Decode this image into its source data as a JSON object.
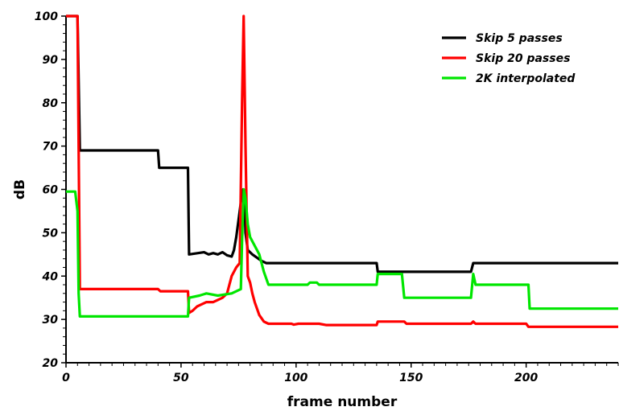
{
  "chart_data": {
    "type": "line",
    "xlabel": "frame number",
    "ylabel": "dB",
    "xlim": [
      0,
      240
    ],
    "ylim": [
      20,
      100
    ],
    "x_ticks": [
      0,
      50,
      100,
      150,
      200
    ],
    "y_ticks": [
      20,
      30,
      40,
      50,
      60,
      70,
      80,
      90,
      100
    ],
    "grid": false,
    "legend_position": "top-right",
    "series": [
      {
        "name": "Skip 5 passes",
        "color": "#000000",
        "points": [
          [
            0,
            100
          ],
          [
            5,
            100
          ],
          [
            6,
            69
          ],
          [
            40,
            69
          ],
          [
            40.5,
            65
          ],
          [
            53,
            65
          ],
          [
            53.5,
            45
          ],
          [
            60,
            45.5
          ],
          [
            62,
            45
          ],
          [
            64,
            45.3
          ],
          [
            66,
            45
          ],
          [
            68,
            45.5
          ],
          [
            70,
            44.8
          ],
          [
            72,
            44.5
          ],
          [
            73,
            46
          ],
          [
            74,
            49
          ],
          [
            75,
            53
          ],
          [
            76,
            57
          ],
          [
            77,
            60
          ],
          [
            77.6,
            58
          ],
          [
            78,
            50
          ],
          [
            79,
            46
          ],
          [
            81,
            45
          ],
          [
            85,
            43.5
          ],
          [
            87,
            43
          ],
          [
            135,
            43
          ],
          [
            135.5,
            41
          ],
          [
            176,
            41
          ],
          [
            177,
            43
          ],
          [
            240,
            43
          ]
        ]
      },
      {
        "name": "Skip 20 passes",
        "color": "#ff0000",
        "points": [
          [
            0,
            100
          ],
          [
            5,
            100
          ],
          [
            6,
            37
          ],
          [
            40,
            37
          ],
          [
            41,
            36.5
          ],
          [
            53,
            36.5
          ],
          [
            53.5,
            31.5
          ],
          [
            55,
            32
          ],
          [
            57,
            33
          ],
          [
            59,
            33.5
          ],
          [
            61,
            34
          ],
          [
            64,
            34
          ],
          [
            66,
            34.5
          ],
          [
            68,
            35
          ],
          [
            70,
            36
          ],
          [
            72,
            40
          ],
          [
            74,
            42
          ],
          [
            75.5,
            43
          ],
          [
            76.5,
            80
          ],
          [
            77.2,
            100
          ],
          [
            78,
            70
          ],
          [
            79,
            40
          ],
          [
            80,
            38.5
          ],
          [
            81,
            36
          ],
          [
            82,
            34
          ],
          [
            84,
            31
          ],
          [
            86,
            29.5
          ],
          [
            88,
            29
          ],
          [
            98,
            29
          ],
          [
            99,
            28.8
          ],
          [
            101,
            29
          ],
          [
            110,
            29
          ],
          [
            113,
            28.7
          ],
          [
            135,
            28.7
          ],
          [
            135.5,
            29.5
          ],
          [
            147,
            29.5
          ],
          [
            148,
            29
          ],
          [
            176,
            29
          ],
          [
            177,
            29.5
          ],
          [
            178,
            29
          ],
          [
            200,
            29
          ],
          [
            201,
            28.3
          ],
          [
            240,
            28.3
          ]
        ]
      },
      {
        "name": "2K interpolated",
        "color": "#00e600",
        "points": [
          [
            0,
            59.5
          ],
          [
            4,
            59.5
          ],
          [
            5,
            55
          ],
          [
            5.5,
            36
          ],
          [
            6,
            30.7
          ],
          [
            53,
            30.7
          ],
          [
            53.5,
            35
          ],
          [
            58,
            35.5
          ],
          [
            61,
            36
          ],
          [
            66,
            35.5
          ],
          [
            72,
            36
          ],
          [
            76,
            37
          ],
          [
            76.5,
            48
          ],
          [
            77.3,
            60
          ],
          [
            78,
            58
          ],
          [
            79,
            52
          ],
          [
            80,
            49
          ],
          [
            82,
            47
          ],
          [
            84,
            45
          ],
          [
            86,
            41
          ],
          [
            88,
            38
          ],
          [
            105,
            38
          ],
          [
            106,
            38.5
          ],
          [
            109,
            38.5
          ],
          [
            110,
            38
          ],
          [
            135,
            38
          ],
          [
            135.5,
            40.5
          ],
          [
            146,
            40.5
          ],
          [
            147,
            35
          ],
          [
            176,
            35
          ],
          [
            177,
            40.5
          ],
          [
            178,
            38
          ],
          [
            201,
            38
          ],
          [
            201.5,
            32.5
          ],
          [
            240,
            32.5
          ]
        ]
      }
    ]
  }
}
